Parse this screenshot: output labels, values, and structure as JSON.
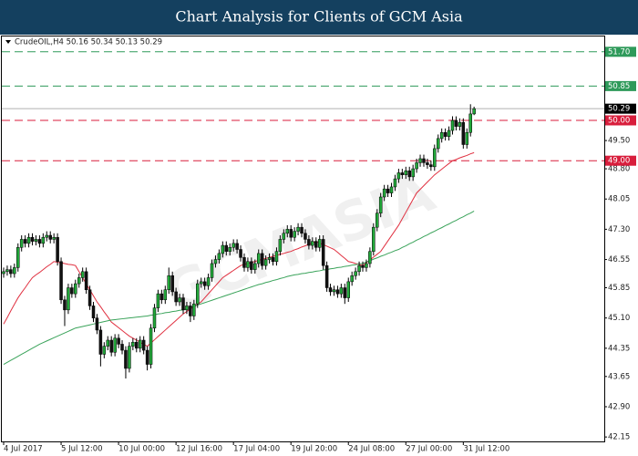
{
  "header": {
    "title": "Chart Analysis for Clients of GCM Asia"
  },
  "chart_data": {
    "type": "candlestick",
    "info": "CrudeOIL,H4  50.16 50.34 50.13 50.29",
    "watermark": "GCMASIA",
    "up_color": "#22a83a",
    "down_color": "#111111",
    "categories": [
      "4 Jul 2017",
      null,
      null,
      null,
      null,
      null,
      null,
      null,
      null,
      null,
      null,
      null,
      null,
      null,
      null,
      null,
      "5 Jul 12:00",
      null,
      null,
      null,
      null,
      null,
      null,
      null,
      null,
      null,
      null,
      null,
      null,
      null,
      null,
      null,
      "10 Jul 00:00",
      null,
      null,
      null,
      null,
      null,
      null,
      null,
      null,
      null,
      null,
      null,
      null,
      null,
      null,
      null,
      "12 Jul 16:00",
      null,
      null,
      null,
      null,
      null,
      null,
      null,
      null,
      null,
      null,
      null,
      null,
      null,
      null,
      null,
      "17 Jul 04:00",
      null,
      null,
      null,
      null,
      null,
      null,
      null,
      null,
      null,
      null,
      null,
      null,
      null,
      null,
      null,
      "19 Jul 20:00",
      null,
      null,
      null,
      null,
      null,
      null,
      null,
      null,
      null,
      null,
      null,
      null,
      null,
      null,
      null,
      "24 Jul 08:00",
      null,
      null,
      null,
      null,
      null,
      null,
      null,
      null,
      null,
      null,
      null,
      null,
      null,
      null,
      null,
      "27 Jul 00:00",
      null,
      null,
      null,
      null,
      null,
      null,
      null,
      null,
      null,
      null,
      null,
      null,
      null,
      null,
      null,
      "31 Jul 12:00",
      null,
      null,
      null
    ],
    "open": [
      46.2,
      46.25,
      46.3,
      46.2,
      46.35,
      46.85,
      47.05,
      46.95,
      47.1,
      47.0,
      47.05,
      46.95,
      47.1,
      47.15,
      47.05,
      47.1,
      46.5,
      45.55,
      45.3,
      45.85,
      45.7,
      45.95,
      46.1,
      46.25,
      45.8,
      45.4,
      45.1,
      44.8,
      44.2,
      44.4,
      44.55,
      44.25,
      44.6,
      44.45,
      44.3,
      43.85,
      44.4,
      44.5,
      44.35,
      44.55,
      44.3,
      43.95,
      44.85,
      45.35,
      45.7,
      45.55,
      45.8,
      46.15,
      45.75,
      45.5,
      45.6,
      45.3,
      45.4,
      45.15,
      45.45,
      45.95,
      46.0,
      45.9,
      46.1,
      46.45,
      46.55,
      46.7,
      46.9,
      46.75,
      46.85,
      46.95,
      46.8,
      46.6,
      46.35,
      46.5,
      46.3,
      46.45,
      46.7,
      46.4,
      46.55,
      46.6,
      46.5,
      46.75,
      47.05,
      47.2,
      47.3,
      47.1,
      47.25,
      47.35,
      47.2,
      47.05,
      46.9,
      47.0,
      46.85,
      47.05,
      46.4,
      45.85,
      45.75,
      45.8,
      45.7,
      45.85,
      45.6,
      46.0,
      46.15,
      46.25,
      46.4,
      46.35,
      46.45,
      46.75,
      47.35,
      47.7,
      48.1,
      48.3,
      48.2,
      48.35,
      48.55,
      48.7,
      48.65,
      48.75,
      48.6,
      48.8,
      48.95,
      49.05,
      48.95,
      48.9,
      48.85,
      49.3,
      49.55,
      49.7,
      49.6,
      49.75,
      50.0,
      49.85,
      49.95,
      49.4,
      49.7,
      50.16
    ],
    "high": [
      46.35,
      46.4,
      46.4,
      46.45,
      46.95,
      47.15,
      47.15,
      47.2,
      47.2,
      47.15,
      47.15,
      47.2,
      47.25,
      47.25,
      47.2,
      47.2,
      46.6,
      45.65,
      45.95,
      45.95,
      46.05,
      46.2,
      46.35,
      46.35,
      45.9,
      45.5,
      45.2,
      44.9,
      44.5,
      44.65,
      44.65,
      44.7,
      44.7,
      44.55,
      44.4,
      44.5,
      44.6,
      44.6,
      44.65,
      44.65,
      44.4,
      44.95,
      45.45,
      45.8,
      45.8,
      45.9,
      46.35,
      46.25,
      45.85,
      45.7,
      45.7,
      45.5,
      45.5,
      45.55,
      46.05,
      46.1,
      46.1,
      46.2,
      46.55,
      46.65,
      46.8,
      47.0,
      47.0,
      46.95,
      47.05,
      47.05,
      46.9,
      46.7,
      46.6,
      46.6,
      46.55,
      46.8,
      46.8,
      46.65,
      46.7,
      46.7,
      46.85,
      47.15,
      47.3,
      47.4,
      47.4,
      47.35,
      47.45,
      47.45,
      47.3,
      47.15,
      47.1,
      47.1,
      47.15,
      47.15,
      46.5,
      45.95,
      45.9,
      45.9,
      45.95,
      45.95,
      46.1,
      46.25,
      46.35,
      46.5,
      46.5,
      46.55,
      46.85,
      47.45,
      47.8,
      48.2,
      48.4,
      48.4,
      48.45,
      48.65,
      48.8,
      48.8,
      48.85,
      48.85,
      48.9,
      49.05,
      49.15,
      49.15,
      49.05,
      49.0,
      49.4,
      49.65,
      49.8,
      49.8,
      49.85,
      50.1,
      50.1,
      50.05,
      50.05,
      49.8,
      50.4,
      50.34
    ],
    "low": [
      46.1,
      46.15,
      46.1,
      46.1,
      46.25,
      46.75,
      46.85,
      46.85,
      46.9,
      46.9,
      46.85,
      46.85,
      47.0,
      46.95,
      46.95,
      46.4,
      45.45,
      44.9,
      45.2,
      45.6,
      45.6,
      45.85,
      46.0,
      45.7,
      45.3,
      45.0,
      44.7,
      43.9,
      44.1,
      44.3,
      44.15,
      44.15,
      44.35,
      44.2,
      43.6,
      43.75,
      44.3,
      44.25,
      44.25,
      44.2,
      43.8,
      43.85,
      44.75,
      45.25,
      45.45,
      45.45,
      45.7,
      45.65,
      45.4,
      45.4,
      45.2,
      45.2,
      45.0,
      45.05,
      45.35,
      45.85,
      45.8,
      45.8,
      46.0,
      46.35,
      46.45,
      46.6,
      46.65,
      46.65,
      46.75,
      46.7,
      46.5,
      46.25,
      46.25,
      46.2,
      46.2,
      46.35,
      46.3,
      46.3,
      46.45,
      46.4,
      46.4,
      46.65,
      46.95,
      47.1,
      47.0,
      47.0,
      47.15,
      47.1,
      46.95,
      46.8,
      46.8,
      46.75,
      46.75,
      46.3,
      45.75,
      45.65,
      45.65,
      45.6,
      45.6,
      45.45,
      45.5,
      45.9,
      46.05,
      46.15,
      46.25,
      46.25,
      46.35,
      46.65,
      47.25,
      47.6,
      48.0,
      48.1,
      48.1,
      48.25,
      48.45,
      48.55,
      48.55,
      48.5,
      48.5,
      48.7,
      48.85,
      48.85,
      48.8,
      48.75,
      48.75,
      49.2,
      49.45,
      49.5,
      49.5,
      49.65,
      49.75,
      49.75,
      49.3,
      49.3,
      49.6,
      50.13
    ],
    "close": [
      46.25,
      46.3,
      46.2,
      46.35,
      46.85,
      47.05,
      46.95,
      47.1,
      47.0,
      47.05,
      46.95,
      47.1,
      47.15,
      47.05,
      47.1,
      46.5,
      45.55,
      45.3,
      45.85,
      45.7,
      45.95,
      46.1,
      46.25,
      45.8,
      45.4,
      45.1,
      44.8,
      44.2,
      44.4,
      44.55,
      44.25,
      44.6,
      44.45,
      44.3,
      43.85,
      44.4,
      44.5,
      44.35,
      44.55,
      44.3,
      43.95,
      44.85,
      45.35,
      45.7,
      45.55,
      45.8,
      46.15,
      45.75,
      45.5,
      45.6,
      45.3,
      45.4,
      45.15,
      45.45,
      45.95,
      46.0,
      45.9,
      46.1,
      46.45,
      46.55,
      46.7,
      46.9,
      46.75,
      46.85,
      46.95,
      46.8,
      46.6,
      46.35,
      46.5,
      46.3,
      46.45,
      46.7,
      46.4,
      46.55,
      46.6,
      46.5,
      46.75,
      47.05,
      47.2,
      47.3,
      47.1,
      47.25,
      47.35,
      47.2,
      47.05,
      46.9,
      47.0,
      46.85,
      47.05,
      46.4,
      45.85,
      45.75,
      45.8,
      45.7,
      45.85,
      45.6,
      46.0,
      46.15,
      46.25,
      46.4,
      46.35,
      46.45,
      46.75,
      47.35,
      47.7,
      48.1,
      48.3,
      48.2,
      48.35,
      48.55,
      48.7,
      48.65,
      48.75,
      48.6,
      48.8,
      48.95,
      49.05,
      48.95,
      48.9,
      48.85,
      49.3,
      49.55,
      49.7,
      49.6,
      49.75,
      50.0,
      49.85,
      49.95,
      49.4,
      49.7,
      50.16,
      50.29
    ],
    "lines": [
      {
        "color": "#e03040",
        "values": [
          44.95,
          45.11,
          45.28,
          45.44,
          45.6,
          45.73,
          45.85,
          45.98,
          46.1,
          46.17,
          46.23,
          46.3,
          46.37,
          46.43,
          46.5,
          46.48,
          46.47,
          46.45,
          46.43,
          46.42,
          46.4,
          46.25,
          46.1,
          45.95,
          45.8,
          45.65,
          45.5,
          45.38,
          45.25,
          45.13,
          45.0,
          44.93,
          44.86,
          44.79,
          44.72,
          44.65,
          44.6,
          44.55,
          44.5,
          44.45,
          44.4,
          44.48,
          44.56,
          44.64,
          44.72,
          44.8,
          44.88,
          44.96,
          45.04,
          45.12,
          45.2,
          45.26,
          45.32,
          45.38,
          45.44,
          45.5,
          45.6,
          45.7,
          45.8,
          45.9,
          46.0,
          46.1,
          46.16,
          46.22,
          46.28,
          46.34,
          46.4,
          46.43,
          46.45,
          46.48,
          46.5,
          46.53,
          46.55,
          46.58,
          46.6,
          46.63,
          46.65,
          46.68,
          46.7,
          46.73,
          46.75,
          46.79,
          46.82,
          46.86,
          46.89,
          46.93,
          46.96,
          47.0,
          46.96,
          46.92,
          46.88,
          46.84,
          46.8,
          46.73,
          46.65,
          46.58,
          46.5,
          46.48,
          46.45,
          46.43,
          46.4,
          46.47,
          46.54,
          46.61,
          46.68,
          46.75,
          46.88,
          47.01,
          47.14,
          47.27,
          47.4,
          47.56,
          47.72,
          47.88,
          48.04,
          48.2,
          48.29,
          48.38,
          48.47,
          48.56,
          48.65,
          48.72,
          48.79,
          48.86,
          48.93,
          49.0,
          49.03,
          49.07,
          49.1,
          49.13,
          49.17,
          49.2
        ]
      },
      {
        "color": "#3aa35a",
        "values": [
          43.95,
          44.0,
          44.05,
          44.1,
          44.15,
          44.2,
          44.25,
          44.3,
          44.35,
          44.4,
          44.45,
          44.49,
          44.53,
          44.57,
          44.61,
          44.65,
          44.69,
          44.73,
          44.77,
          44.81,
          44.85,
          44.87,
          44.89,
          44.91,
          44.93,
          44.95,
          44.97,
          44.99,
          45.01,
          45.03,
          45.05,
          45.06,
          45.07,
          45.08,
          45.09,
          45.1,
          45.11,
          45.12,
          45.13,
          45.14,
          45.15,
          45.17,
          45.18,
          45.2,
          45.21,
          45.23,
          45.24,
          45.26,
          45.27,
          45.29,
          45.3,
          45.33,
          45.36,
          45.39,
          45.42,
          45.45,
          45.48,
          45.51,
          45.54,
          45.57,
          45.6,
          45.63,
          45.66,
          45.69,
          45.72,
          45.75,
          45.78,
          45.81,
          45.84,
          45.87,
          45.9,
          45.93,
          45.95,
          45.98,
          46.0,
          46.03,
          46.05,
          46.08,
          46.1,
          46.13,
          46.15,
          46.17,
          46.18,
          46.2,
          46.21,
          46.23,
          46.24,
          46.26,
          46.27,
          46.29,
          46.3,
          46.32,
          46.33,
          46.35,
          46.36,
          46.38,
          46.39,
          46.41,
          46.42,
          46.44,
          46.45,
          46.49,
          46.52,
          46.56,
          46.59,
          46.63,
          46.66,
          46.7,
          46.73,
          46.77,
          46.8,
          46.85,
          46.89,
          46.94,
          46.98,
          47.03,
          47.07,
          47.12,
          47.16,
          47.21,
          47.25,
          47.3,
          47.34,
          47.39,
          47.43,
          47.48,
          47.52,
          47.57,
          47.61,
          47.66,
          47.7,
          47.75
        ]
      }
    ],
    "levels": [
      {
        "value": 51.7,
        "label": "51.70",
        "color": "#2e9a5a",
        "style": "dashed"
      },
      {
        "value": 50.85,
        "color": "#2e9a5a",
        "style": "dashed"
      },
      {
        "value": 50.29,
        "color": "#000000",
        "style": "solid"
      },
      {
        "value": 50.0,
        "label": "50.00",
        "color": "#d81e3c",
        "style": "dashed"
      },
      {
        "value": 49.0,
        "label": "49.00",
        "color": "#d81e3c",
        "style": "dashed"
      }
    ],
    "ylim": [
      42.04,
      52.08
    ],
    "yticks": [
      {
        "value": 49.5,
        "label": "49.50"
      },
      {
        "value": 48.8,
        "label": "48.80"
      },
      {
        "value": 48.05,
        "label": "48.05"
      },
      {
        "value": 47.3,
        "label": "47.30"
      },
      {
        "value": 46.55,
        "label": "46.55"
      },
      {
        "value": 45.85,
        "label": "45.85"
      },
      {
        "value": 45.1,
        "label": "45.10"
      },
      {
        "value": 44.35,
        "label": "44.35"
      },
      {
        "value": 43.65,
        "label": "43.65"
      },
      {
        "value": 42.9,
        "label": "42.90"
      },
      {
        "value": 42.15,
        "label": "42.15"
      }
    ]
  }
}
